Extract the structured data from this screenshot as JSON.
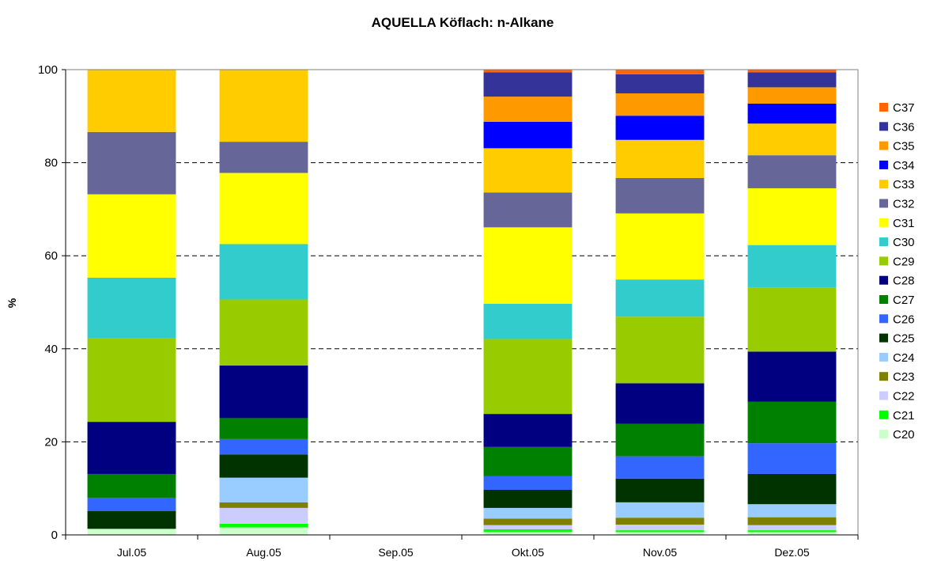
{
  "chart_data": {
    "type": "bar",
    "stacked": true,
    "title": "AQUELLA Köflach: n-Alkane",
    "xlabel": "",
    "ylabel": "%",
    "ylim": [
      0,
      100
    ],
    "yticks": [
      0,
      20,
      40,
      60,
      80,
      100
    ],
    "grid": "horizontal dashed",
    "legend_position": "right",
    "categories": [
      "Jul.05",
      "Aug.05",
      "Sep.05",
      "Okt.05",
      "Nov.05",
      "Dez.05"
    ],
    "series": [
      {
        "name": "C20",
        "color": "#ccffcc",
        "values": [
          1.3,
          1.6,
          0,
          0.6,
          0.6,
          0.6
        ]
      },
      {
        "name": "C21",
        "color": "#00ff00",
        "values": [
          0,
          0.8,
          0,
          0.6,
          0.4,
          0.4
        ]
      },
      {
        "name": "C22",
        "color": "#ccccff",
        "values": [
          0,
          3.4,
          0,
          0.9,
          1.2,
          1.1
        ]
      },
      {
        "name": "C23",
        "color": "#808000",
        "values": [
          0,
          1.2,
          0,
          1.4,
          1.5,
          1.7
        ]
      },
      {
        "name": "C24",
        "color": "#99ccff",
        "values": [
          0,
          5.3,
          0,
          2.3,
          3.3,
          2.8
        ]
      },
      {
        "name": "C25",
        "color": "#003300",
        "values": [
          3.8,
          5.0,
          0,
          3.9,
          5.1,
          6.5
        ]
      },
      {
        "name": "C26",
        "color": "#3366ff",
        "values": [
          2.9,
          3.3,
          0,
          2.9,
          4.8,
          6.6
        ]
      },
      {
        "name": "C27",
        "color": "#008000",
        "values": [
          5.1,
          4.5,
          0,
          6.3,
          7.0,
          8.9
        ]
      },
      {
        "name": "C28",
        "color": "#000080",
        "values": [
          11.2,
          11.3,
          0,
          7.1,
          8.7,
          10.8
        ]
      },
      {
        "name": "C29",
        "color": "#99cc00",
        "values": [
          17.9,
          14.2,
          0,
          16.1,
          14.3,
          13.7
        ]
      },
      {
        "name": "C30",
        "color": "#33cccc",
        "values": [
          13.1,
          11.9,
          0,
          7.6,
          8.0,
          9.2
        ]
      },
      {
        "name": "C31",
        "color": "#ffff00",
        "values": [
          17.9,
          15.3,
          0,
          16.4,
          14.2,
          12.2
        ]
      },
      {
        "name": "C32",
        "color": "#666699",
        "values": [
          13.4,
          6.7,
          0,
          7.5,
          7.6,
          7.1
        ]
      },
      {
        "name": "C33",
        "color": "#ffcc00",
        "values": [
          13.4,
          15.5,
          0,
          9.5,
          8.2,
          6.8
        ]
      },
      {
        "name": "C34",
        "color": "#0000ff",
        "values": [
          0,
          0,
          0,
          5.7,
          5.2,
          4.3
        ]
      },
      {
        "name": "C35",
        "color": "#ff9900",
        "values": [
          0,
          0,
          0,
          5.4,
          4.8,
          3.5
        ]
      },
      {
        "name": "C36",
        "color": "#333399",
        "values": [
          0,
          0,
          0,
          5.2,
          4.1,
          3.2
        ]
      },
      {
        "name": "C37",
        "color": "#ff6600",
        "values": [
          0,
          0,
          0,
          0.6,
          1.0,
          0.6
        ]
      }
    ]
  }
}
